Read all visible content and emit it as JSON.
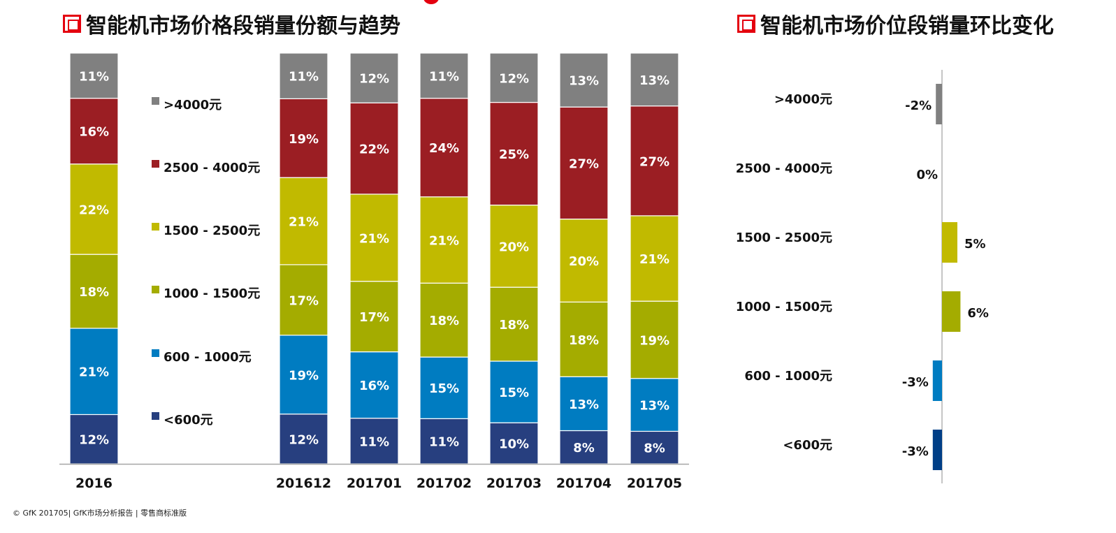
{
  "page": {
    "footer": "© GfK 201705| GfK市场分析报告 | 零售商标准版"
  },
  "chart_data": [
    {
      "type": "bar",
      "stacked": true,
      "title": "智能机市场价格段销量份额与趋势",
      "xlabel": "",
      "ylabel": "",
      "ylim": [
        0,
        100
      ],
      "unit": "%",
      "grid": false,
      "legend_position": "right-of-first-bar",
      "categories": [
        "2016",
        "201612",
        "201701",
        "201702",
        "201703",
        "201704",
        "201705"
      ],
      "series": [
        {
          "name": "<600元",
          "color": "#273f7f",
          "values": [
            12,
            12,
            11,
            11,
            10,
            8,
            8
          ]
        },
        {
          "name": "600 - 1000元",
          "color": "#007cc1",
          "values": [
            21,
            19,
            16,
            15,
            15,
            13,
            13
          ]
        },
        {
          "name": "1000 - 1500元",
          "color": "#a4ac00",
          "values": [
            18,
            17,
            17,
            18,
            18,
            18,
            19
          ]
        },
        {
          "name": "1500 - 2500元",
          "color": "#c1ba00",
          "values": [
            22,
            21,
            21,
            21,
            20,
            20,
            21
          ]
        },
        {
          "name": "2500 - 4000元",
          "color": "#9b1e23",
          "values": [
            16,
            19,
            22,
            24,
            25,
            27,
            27
          ]
        },
        {
          "name": ">4000元",
          "color": "#808080",
          "values": [
            11,
            11,
            12,
            11,
            12,
            13,
            13
          ]
        }
      ],
      "legend": [
        ">4000元",
        "2500 - 4000元",
        "1500 - 2500元",
        "1000 - 1500元",
        "600 - 1000元",
        "<600元"
      ]
    },
    {
      "type": "bar",
      "orientation": "horizontal",
      "title": "智能机市场价位段销量环比变化",
      "xlabel": "",
      "ylabel": "",
      "unit": "%",
      "grid": false,
      "xlim": [
        -5,
        8
      ],
      "categories": [
        ">4000元",
        "2500 - 4000元",
        "1500 - 2500元",
        "1000 - 1500元",
        "600 - 1000元",
        "<600元"
      ],
      "values": [
        -2,
        0,
        5,
        6,
        -3,
        -3
      ],
      "colors": [
        "#808080",
        "#9b1e23",
        "#c1ba00",
        "#a4ac00",
        "#007cc1",
        "#003f87"
      ]
    }
  ]
}
